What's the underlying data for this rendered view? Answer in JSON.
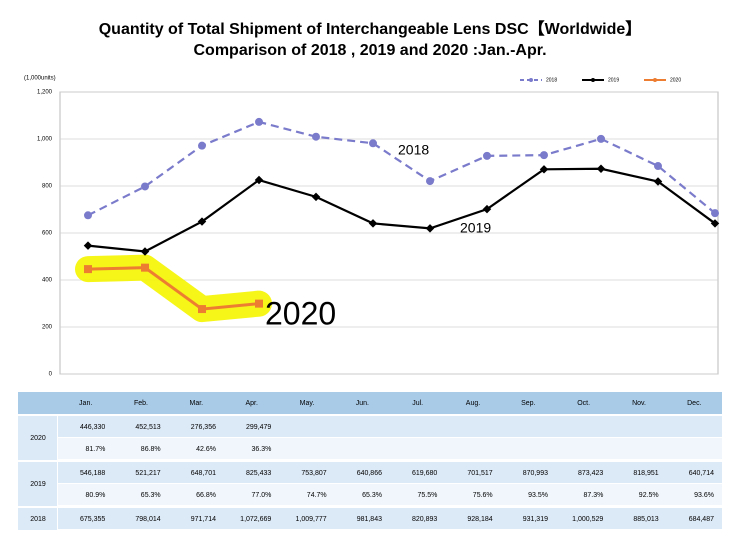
{
  "chart_data": {
    "type": "line",
    "title": "Quantity of Total Shipment of Interchangeable Lens DSC【Worldwide】",
    "subtitle": "Comparison of 2018 , 2019 and 2020 :Jan.-Apr.",
    "y_unit_label": "(1,000units)",
    "categories": [
      "Jan.",
      "Feb.",
      "Mar.",
      "Apr.",
      "May.",
      "Jun.",
      "Jul.",
      "Aug.",
      "Sep.",
      "Oct.",
      "Nov.",
      "Dec."
    ],
    "ylim": [
      0,
      1200
    ],
    "yticks": [
      0,
      200,
      400,
      600,
      800,
      {
        "value": 1000,
        "label": "1,000"
      },
      {
        "value": 1200,
        "label": "1,200"
      }
    ],
    "grid": true,
    "legend": "top-right",
    "series": [
      {
        "name": "2018",
        "color": "#7b7bcc",
        "dashed": true,
        "values": [
          675.355,
          798.014,
          971.714,
          1072.669,
          1009.777,
          981.843,
          820.893,
          928.184,
          931.319,
          1000.529,
          885.013,
          684.487
        ],
        "value_labels": [
          "675,355",
          "798,014",
          "971,714",
          "1,072,669",
          "1,009,777",
          "981,843",
          "820,893",
          "928,184",
          "931,319",
          "1,000,529",
          "885,013",
          "684,487"
        ]
      },
      {
        "name": "2019",
        "color": "#000000",
        "dashed": false,
        "values": [
          546.188,
          521.217,
          648.701,
          825.433,
          753.807,
          640.866,
          619.68,
          701.517,
          870.993,
          873.423,
          818.951,
          640.714
        ],
        "value_labels": [
          "546,188",
          "521,217",
          "648,701",
          "825,433",
          "753,807",
          "640,866",
          "619,680",
          "701,517",
          "870,993",
          "873,423",
          "818,951",
          "640,714"
        ],
        "ratio_labels": [
          "80.9%",
          "65.3%",
          "66.8%",
          "77.0%",
          "74.7%",
          "65.3%",
          "75.5%",
          "75.6%",
          "93.5%",
          "87.3%",
          "92.5%",
          "93.6%"
        ]
      },
      {
        "name": "2020",
        "color": "#ed7d31",
        "dashed": false,
        "highlight": "#f5f500",
        "values": [
          446.33,
          452.513,
          276.356,
          299.479,
          null,
          null,
          null,
          null,
          null,
          null,
          null,
          null
        ],
        "value_labels": [
          "446,330",
          "452,513",
          "276,356",
          "299,479",
          null,
          null,
          null,
          null,
          null,
          null,
          null,
          null
        ],
        "ratio_labels": [
          "81.7%",
          "86.8%",
          "42.6%",
          "36.3%",
          null,
          null,
          null,
          null,
          null,
          null,
          null,
          null
        ]
      }
    ]
  }
}
